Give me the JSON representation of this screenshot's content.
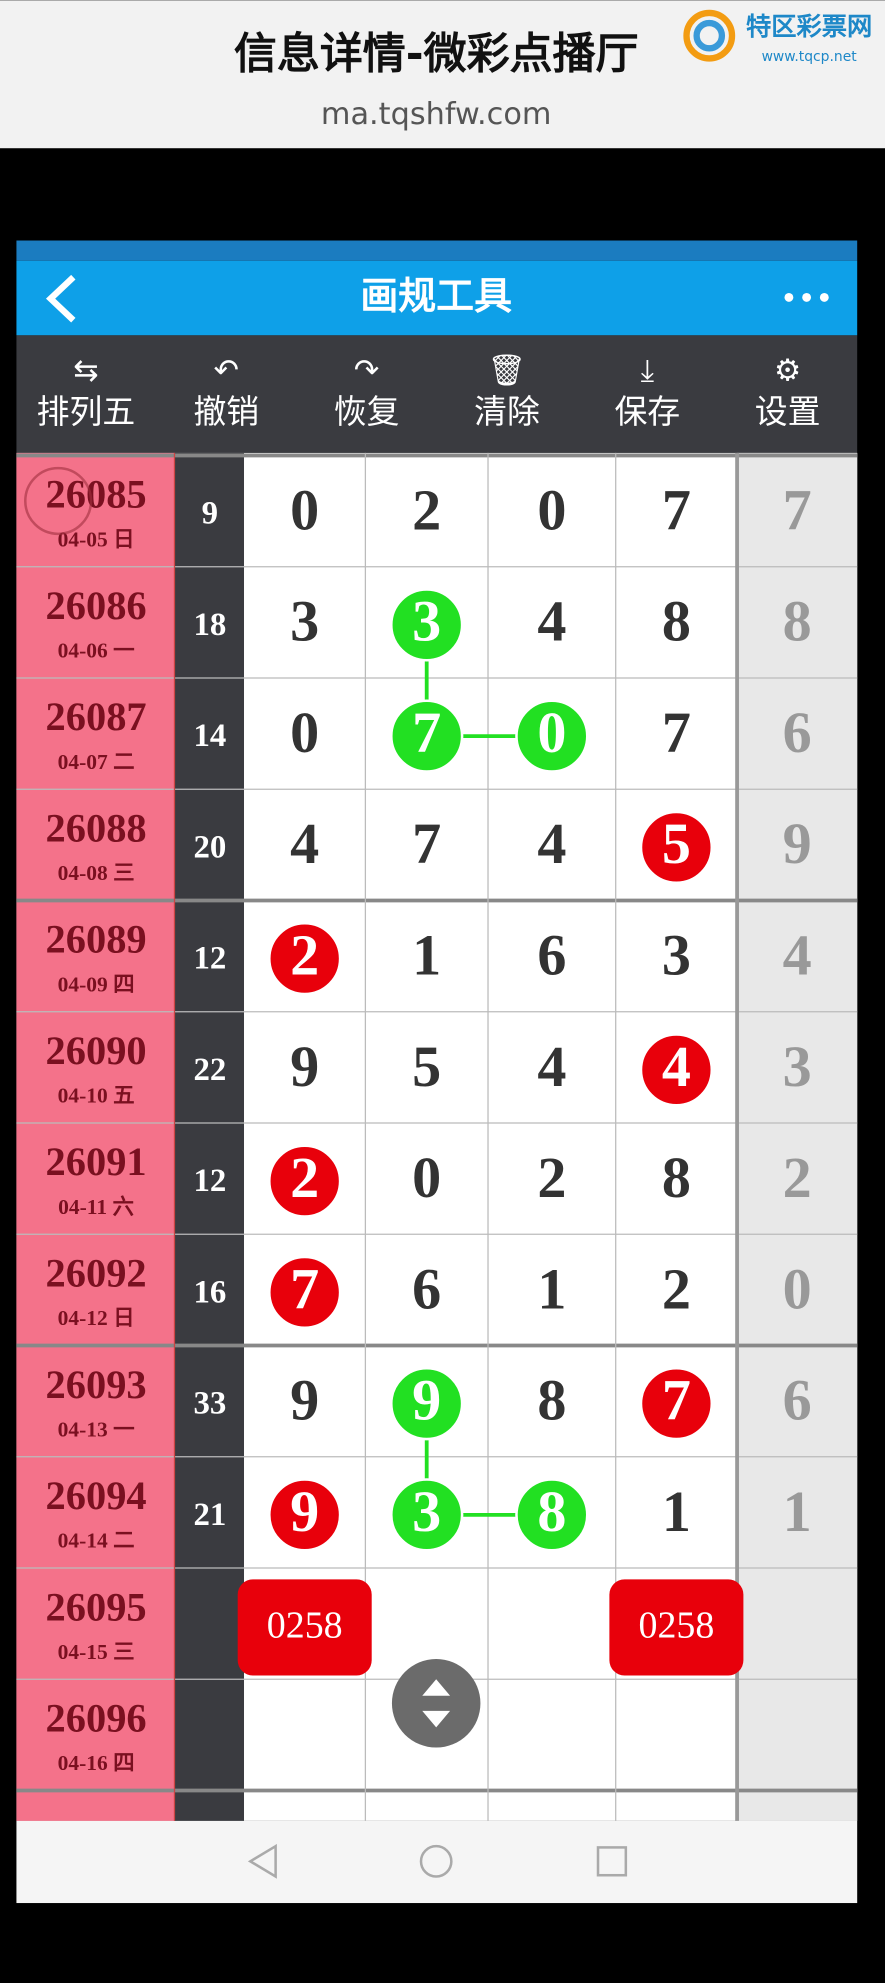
{
  "header": {
    "title": "信息详情-微彩点播厅",
    "url": "ma.tqshfw.com",
    "logo_name": "特区彩票网",
    "logo_url": "www.tqcp.net"
  },
  "app_bar": {
    "title": "画规工具"
  },
  "toolbar": [
    "排列五",
    "撤销",
    "恢复",
    "清除",
    "保存",
    "设置"
  ],
  "rows": [
    {
      "issue": "26085",
      "date": "04-05 日",
      "sum": 9,
      "digits": [
        0,
        2,
        0,
        7
      ],
      "extra": 7
    },
    {
      "issue": "26086",
      "date": "04-06 一",
      "sum": 18,
      "digits": [
        3,
        3,
        4,
        8
      ],
      "extra": 8
    },
    {
      "issue": "26087",
      "date": "04-07 二",
      "sum": 14,
      "digits": [
        0,
        7,
        0,
        7
      ],
      "extra": 6
    },
    {
      "issue": "26088",
      "date": "04-08 三",
      "sum": 20,
      "digits": [
        4,
        7,
        4,
        5
      ],
      "extra": 9
    },
    {
      "issue": "26089",
      "date": "04-09 四",
      "sum": 12,
      "digits": [
        2,
        1,
        6,
        3
      ],
      "extra": 4
    },
    {
      "issue": "26090",
      "date": "04-10 五",
      "sum": 22,
      "digits": [
        9,
        5,
        4,
        4
      ],
      "extra": 3
    },
    {
      "issue": "26091",
      "date": "04-11 六",
      "sum": 12,
      "digits": [
        2,
        0,
        2,
        8
      ],
      "extra": 2
    },
    {
      "issue": "26092",
      "date": "04-12 日",
      "sum": 16,
      "digits": [
        7,
        6,
        1,
        2
      ],
      "extra": 0
    },
    {
      "issue": "26093",
      "date": "04-13 一",
      "sum": 33,
      "digits": [
        9,
        9,
        8,
        7
      ],
      "extra": 6
    },
    {
      "issue": "26094",
      "date": "04-14 二",
      "sum": 21,
      "digits": [
        9,
        3,
        8,
        1
      ],
      "extra": 1
    },
    {
      "issue": "26095",
      "date": "04-15 三"
    },
    {
      "issue": "26096",
      "date": "04-16 四"
    }
  ],
  "highlights": [
    {
      "row": 1,
      "col": 1,
      "color": "#22e022"
    },
    {
      "row": 2,
      "col": 1,
      "color": "#22e022"
    },
    {
      "row": 2,
      "col": 2,
      "color": "#22e022"
    },
    {
      "row": 3,
      "col": 3,
      "color": "#e8000b"
    },
    {
      "row": 4,
      "col": 0,
      "color": "#e8000b"
    },
    {
      "row": 5,
      "col": 3,
      "color": "#e8000b"
    },
    {
      "row": 6,
      "col": 0,
      "color": "#e8000b"
    },
    {
      "row": 7,
      "col": 0,
      "color": "#e8000b"
    },
    {
      "row": 8,
      "col": 1,
      "color": "#22e022"
    },
    {
      "row": 8,
      "col": 3,
      "color": "#e8000b"
    },
    {
      "row": 9,
      "col": 0,
      "color": "#e8000b"
    },
    {
      "row": 9,
      "col": 1,
      "color": "#22e022"
    },
    {
      "row": 9,
      "col": 2,
      "color": "#22e022"
    }
  ],
  "connections": [
    [
      1,
      1,
      2,
      1
    ],
    [
      2,
      1,
      2,
      2
    ],
    [
      8,
      1,
      9,
      1
    ],
    [
      9,
      1,
      9,
      2
    ]
  ],
  "badges": [
    {
      "row": 10,
      "col": 0,
      "text": "0258"
    },
    {
      "row": 10,
      "col": 3,
      "text": "0258"
    }
  ]
}
